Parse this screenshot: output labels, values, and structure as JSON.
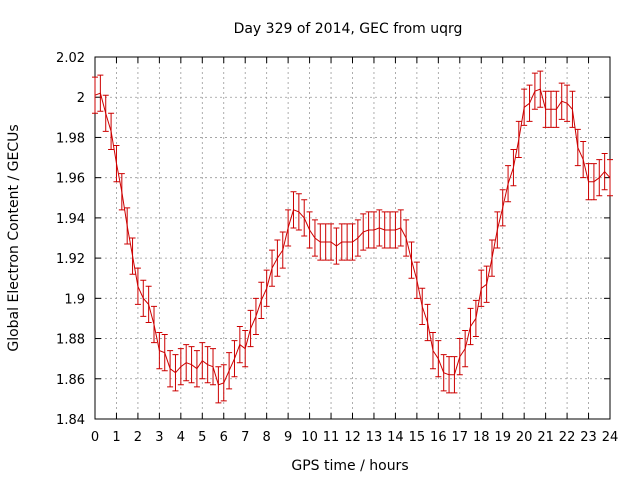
{
  "chart_data": {
    "type": "line",
    "title": "Day 329 of 2014, GEC from uqrg",
    "xlabel": "GPS time / hours",
    "ylabel": "Global Electron Content / GECUs",
    "xlim": [
      0,
      24
    ],
    "ylim": [
      1.84,
      2.02
    ],
    "xticks": [
      "0",
      "1",
      "2",
      "3",
      "4",
      "5",
      "6",
      "7",
      "8",
      "9",
      "10",
      "11",
      "12",
      "13",
      "14",
      "15",
      "16",
      "17",
      "18",
      "19",
      "20",
      "21",
      "22",
      "23",
      "24"
    ],
    "yticks": [
      "1.84",
      "1.86",
      "1.88",
      "1.9",
      "1.92",
      "1.94",
      "1.96",
      "1.98",
      "2",
      "2.02"
    ],
    "grid": true,
    "legend": "none",
    "color": "#cc0000",
    "error_bar": 0.009,
    "series": [
      {
        "x": [
          0,
          0.25,
          0.5,
          0.75,
          1,
          1.25,
          1.5,
          1.75,
          2,
          2.25,
          2.5,
          2.75,
          3,
          3.25,
          3.5,
          3.75,
          4,
          4.25,
          4.5,
          4.75,
          5,
          5.25,
          5.5,
          5.75,
          6,
          6.25,
          6.5,
          6.75,
          7,
          7.25,
          7.5,
          7.75,
          8,
          8.25,
          8.5,
          8.75,
          9,
          9.25,
          9.5,
          9.75,
          10,
          10.25,
          10.5,
          10.75,
          11,
          11.25,
          11.5,
          11.75,
          12,
          12.25,
          12.5,
          12.75,
          13,
          13.25,
          13.5,
          13.75,
          14,
          14.25,
          14.5,
          14.75,
          15,
          15.25,
          15.5,
          15.75,
          16,
          16.25,
          16.5,
          16.75,
          17,
          17.25,
          17.5,
          17.75,
          18,
          18.25,
          18.5,
          18.75,
          19,
          19.25,
          19.5,
          19.75,
          20,
          20.25,
          20.5,
          20.75,
          21,
          21.25,
          21.5,
          21.75,
          22,
          22.25,
          22.5,
          22.75,
          23,
          23.25,
          23.5,
          23.75,
          24
        ],
        "y": [
          2.001,
          2.002,
          1.992,
          1.983,
          1.967,
          1.953,
          1.936,
          1.921,
          1.906,
          1.9,
          1.897,
          1.887,
          1.874,
          1.873,
          1.865,
          1.863,
          1.866,
          1.868,
          1.867,
          1.865,
          1.869,
          1.867,
          1.866,
          1.857,
          1.858,
          1.864,
          1.87,
          1.877,
          1.875,
          1.885,
          1.891,
          1.899,
          1.905,
          1.915,
          1.92,
          1.924,
          1.935,
          1.944,
          1.943,
          1.94,
          1.934,
          1.93,
          1.928,
          1.928,
          1.928,
          1.926,
          1.928,
          1.928,
          1.928,
          1.93,
          1.933,
          1.934,
          1.934,
          1.935,
          1.934,
          1.934,
          1.934,
          1.935,
          1.93,
          1.919,
          1.909,
          1.896,
          1.888,
          1.874,
          1.87,
          1.863,
          1.862,
          1.862,
          1.871,
          1.875,
          1.886,
          1.89,
          1.905,
          1.907,
          1.92,
          1.934,
          1.945,
          1.957,
          1.965,
          1.979,
          1.995,
          1.997,
          2.003,
          2.004,
          1.994,
          1.994,
          1.994,
          1.998,
          1.997,
          1.994,
          1.975,
          1.969,
          1.958,
          1.958,
          1.96,
          1.963,
          1.96
        ]
      }
    ]
  }
}
